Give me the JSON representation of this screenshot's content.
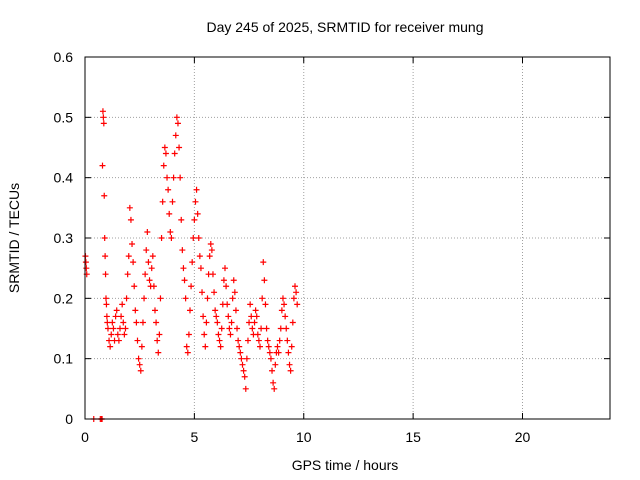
{
  "chart_data": {
    "type": "scatter",
    "title": "Day 245 of 2025, SRMTID for receiver mung",
    "xlabel": "GPS time / hours",
    "ylabel": "SRMTID / TECUs",
    "xlim": [
      0,
      24
    ],
    "ylim": [
      0,
      0.6
    ],
    "xticks": [
      0,
      5,
      10,
      15,
      20
    ],
    "xtick_labels": [
      "0",
      "5",
      "10",
      "15",
      "20"
    ],
    "yticks": [
      0,
      0.1,
      0.2,
      0.3,
      0.4,
      0.5,
      0.6
    ],
    "ytick_labels": [
      "0",
      "0.1",
      "0.2",
      "0.3",
      "0.4",
      "0.5",
      "0.6"
    ],
    "grid": true,
    "marker": "plus",
    "color": "#ff0000",
    "series": [
      {
        "name": "SRMTID",
        "x": [
          0.02,
          0.04,
          0.06,
          0.08,
          0.4,
          0.7,
          0.75,
          0.78,
          0.8,
          0.82,
          0.84,
          0.86,
          0.88,
          0.9,
          0.92,
          0.94,
          0.96,
          0.98,
          1.0,
          1.02,
          1.05,
          1.1,
          1.15,
          1.2,
          1.25,
          1.3,
          1.35,
          1.4,
          1.45,
          1.5,
          1.55,
          1.6,
          1.65,
          1.7,
          1.75,
          1.8,
          1.85,
          1.9,
          1.95,
          2.0,
          2.05,
          2.1,
          2.15,
          2.2,
          2.25,
          2.3,
          2.35,
          2.4,
          2.45,
          2.5,
          2.55,
          2.6,
          2.65,
          2.7,
          2.75,
          2.8,
          2.85,
          2.9,
          2.95,
          3.0,
          3.05,
          3.1,
          3.15,
          3.2,
          3.25,
          3.3,
          3.35,
          3.4,
          3.45,
          3.5,
          3.55,
          3.6,
          3.65,
          3.7,
          3.75,
          3.8,
          3.85,
          3.9,
          3.95,
          4.0,
          4.05,
          4.1,
          4.15,
          4.2,
          4.25,
          4.3,
          4.35,
          4.4,
          4.45,
          4.5,
          4.55,
          4.6,
          4.65,
          4.7,
          4.75,
          4.8,
          4.85,
          4.9,
          4.95,
          5.0,
          5.05,
          5.1,
          5.15,
          5.2,
          5.25,
          5.3,
          5.35,
          5.4,
          5.45,
          5.5,
          5.55,
          5.6,
          5.65,
          5.7,
          5.75,
          5.8,
          5.85,
          5.9,
          5.95,
          6.0,
          6.05,
          6.1,
          6.15,
          6.2,
          6.25,
          6.3,
          6.35,
          6.4,
          6.45,
          6.5,
          6.55,
          6.6,
          6.65,
          6.7,
          6.75,
          6.8,
          6.85,
          6.9,
          6.95,
          7.0,
          7.05,
          7.1,
          7.15,
          7.2,
          7.25,
          7.3,
          7.35,
          7.4,
          7.45,
          7.5,
          7.55,
          7.6,
          7.65,
          7.7,
          7.75,
          7.8,
          7.85,
          7.9,
          7.95,
          8.0,
          8.05,
          8.1,
          8.15,
          8.2,
          8.25,
          8.3,
          8.35,
          8.4,
          8.45,
          8.5,
          8.55,
          8.6,
          8.65,
          8.7,
          8.75,
          8.8,
          8.85,
          8.9,
          8.95,
          9.0,
          9.05,
          9.1,
          9.15,
          9.2,
          9.25,
          9.3,
          9.35,
          9.4,
          9.45,
          9.5,
          9.55,
          9.6,
          9.65,
          9.7
        ],
        "y": [
          0.27,
          0.26,
          0.25,
          0.24,
          0.0,
          0.0,
          0.0,
          0.0,
          0.42,
          0.51,
          0.5,
          0.49,
          0.37,
          0.3,
          0.27,
          0.24,
          0.2,
          0.19,
          0.17,
          0.16,
          0.15,
          0.13,
          0.12,
          0.14,
          0.16,
          0.15,
          0.13,
          0.17,
          0.18,
          0.14,
          0.13,
          0.15,
          0.17,
          0.19,
          0.16,
          0.14,
          0.15,
          0.2,
          0.24,
          0.27,
          0.35,
          0.33,
          0.29,
          0.26,
          0.22,
          0.18,
          0.16,
          0.13,
          0.1,
          0.09,
          0.08,
          0.12,
          0.16,
          0.2,
          0.24,
          0.28,
          0.31,
          0.26,
          0.23,
          0.22,
          0.25,
          0.27,
          0.22,
          0.18,
          0.16,
          0.13,
          0.11,
          0.14,
          0.2,
          0.3,
          0.36,
          0.42,
          0.45,
          0.44,
          0.4,
          0.38,
          0.34,
          0.31,
          0.3,
          0.36,
          0.4,
          0.44,
          0.47,
          0.5,
          0.49,
          0.45,
          0.4,
          0.33,
          0.28,
          0.25,
          0.23,
          0.2,
          0.12,
          0.11,
          0.14,
          0.18,
          0.22,
          0.26,
          0.3,
          0.33,
          0.36,
          0.38,
          0.34,
          0.3,
          0.27,
          0.25,
          0.21,
          0.17,
          0.14,
          0.12,
          0.16,
          0.2,
          0.24,
          0.27,
          0.29,
          0.28,
          0.24,
          0.21,
          0.18,
          0.17,
          0.16,
          0.14,
          0.13,
          0.12,
          0.15,
          0.19,
          0.23,
          0.25,
          0.22,
          0.19,
          0.17,
          0.15,
          0.14,
          0.16,
          0.2,
          0.23,
          0.21,
          0.18,
          0.15,
          0.13,
          0.12,
          0.11,
          0.1,
          0.09,
          0.08,
          0.07,
          0.05,
          0.1,
          0.13,
          0.16,
          0.19,
          0.17,
          0.15,
          0.14,
          0.16,
          0.18,
          0.17,
          0.14,
          0.13,
          0.12,
          0.15,
          0.2,
          0.26,
          0.23,
          0.19,
          0.15,
          0.13,
          0.12,
          0.11,
          0.1,
          0.08,
          0.06,
          0.05,
          0.09,
          0.11,
          0.12,
          0.11,
          0.13,
          0.15,
          0.18,
          0.2,
          0.19,
          0.17,
          0.15,
          0.13,
          0.11,
          0.09,
          0.08,
          0.12,
          0.16,
          0.2,
          0.22,
          0.21,
          0.19
        ]
      }
    ]
  }
}
